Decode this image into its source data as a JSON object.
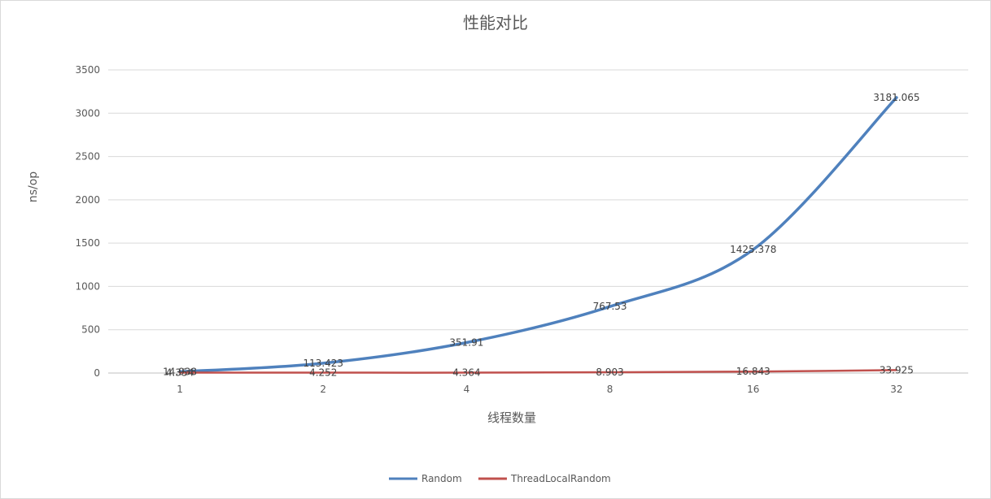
{
  "chart_data": {
    "type": "line",
    "title": "性能对比",
    "xlabel": "线程数量",
    "ylabel": "ns/op",
    "categories": [
      "1",
      "2",
      "4",
      "8",
      "16",
      "32"
    ],
    "ylim": [
      0,
      3500
    ],
    "yticks": [
      0,
      500,
      1000,
      1500,
      2000,
      2500,
      3000,
      3500
    ],
    "grid": true,
    "legend": "bottom",
    "series": [
      {
        "name": "Random",
        "color": "#4f81bd",
        "values": [
          14.938,
          113.423,
          351.91,
          767.53,
          1425.378,
          3181.065
        ],
        "labels": [
          "14.938",
          "113.423",
          "351.91",
          "767.53",
          "1425.378",
          "3181.065"
        ]
      },
      {
        "name": "ThreadLocalRandom",
        "color": "#c0504d",
        "values": [
          4.354,
          4.252,
          4.364,
          8.903,
          16.843,
          33.925
        ],
        "labels": [
          "4.354",
          "4.252",
          "4.364",
          "8.903",
          "16.843",
          "33.925"
        ]
      }
    ]
  }
}
